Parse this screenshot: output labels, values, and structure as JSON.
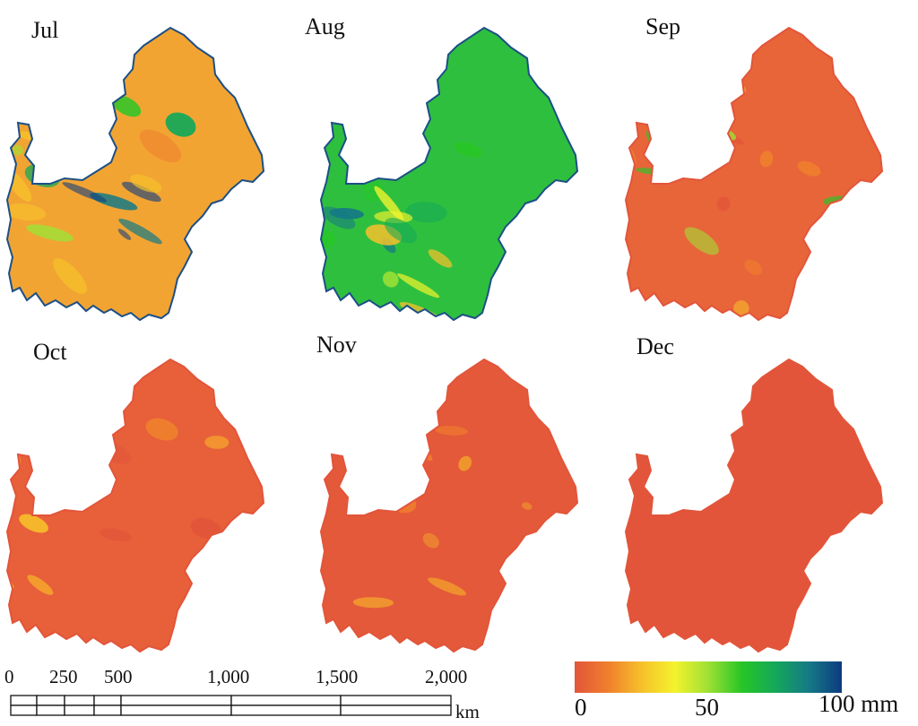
{
  "panels": [
    {
      "label": "Jul",
      "scheme": "wet"
    },
    {
      "label": "Aug",
      "scheme": "wettest"
    },
    {
      "label": "Sep",
      "scheme": "mixed"
    },
    {
      "label": "Oct",
      "scheme": "dry"
    },
    {
      "label": "Nov",
      "scheme": "drier"
    },
    {
      "label": "Dec",
      "scheme": "driest"
    }
  ],
  "scale_bar": {
    "ticks": [
      "0",
      "250",
      "500",
      "1,000",
      "1,500",
      "2,000"
    ],
    "unit": "km"
  },
  "legend": {
    "min": "0",
    "mid": "50",
    "max": "100 mm",
    "colors": [
      "#e2553a",
      "#f07f2d",
      "#f6c02b",
      "#f4f32c",
      "#9fe035",
      "#27c626",
      "#14a859",
      "#167a86",
      "#0c3b80"
    ]
  }
}
